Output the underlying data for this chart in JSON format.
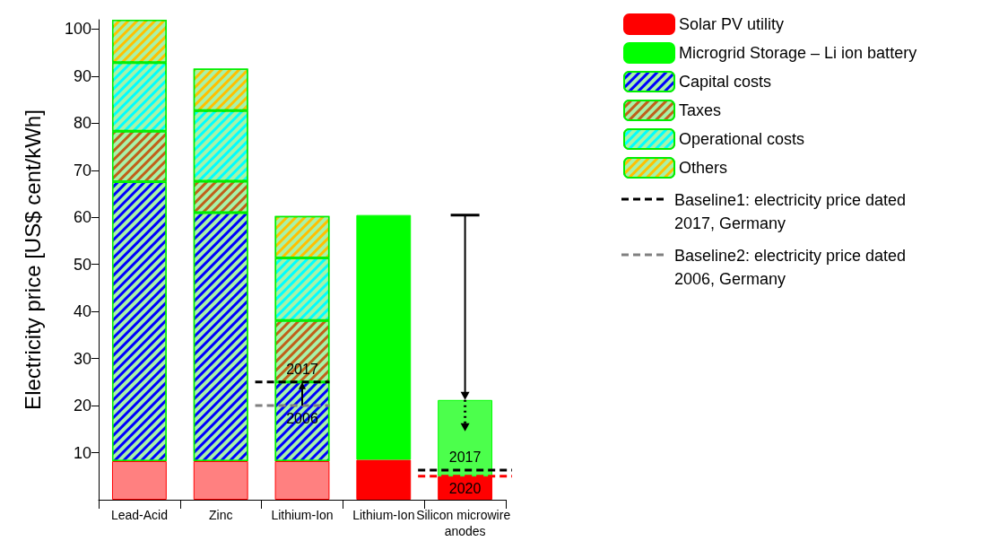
{
  "chart_data": {
    "type": "bar",
    "stacked": true,
    "ylabel": "Electricity price [US$ cent/kWh]",
    "categories": [
      "Lead-Acid",
      "Zinc",
      "Lithium-Ion",
      "Lithium-Ion",
      "Silicon microwire anodes"
    ],
    "series": [
      {
        "name": "Solar PV utility",
        "color": "#ff0000",
        "colors": [
          "#ff8080",
          "#ff8080",
          "#ff8080",
          "#ff0000",
          "#ff0000"
        ],
        "values": [
          8.2,
          8.2,
          8.2,
          8.5,
          5.0
        ]
      },
      {
        "name": "Microgrid Storage – Li ion battery",
        "color": "#00ff00",
        "colors": [
          null,
          null,
          null,
          "#00ff00",
          "#4cff4c"
        ],
        "values": [
          null,
          null,
          null,
          52.0,
          16.2
        ]
      },
      {
        "name": "Capital costs",
        "color": "#0000ff",
        "values": [
          59.4,
          52.8,
          16.8,
          null,
          null
        ]
      },
      {
        "name": "Taxes",
        "color": "#c0601a",
        "values": [
          10.7,
          6.7,
          13.1,
          null,
          null
        ]
      },
      {
        "name": "Operational costs",
        "color": "#00ffff",
        "values": [
          14.6,
          15.0,
          13.3,
          null,
          null
        ]
      },
      {
        "name": "Others",
        "color": "#ffc000",
        "values": [
          9.1,
          8.9,
          8.9,
          null,
          null
        ]
      }
    ],
    "ylim": [
      0,
      102
    ],
    "yticks": [
      10,
      20,
      30,
      40,
      50,
      60,
      70,
      80,
      90,
      100
    ],
    "ref_lines": [
      {
        "axis": "y",
        "value": 25,
        "color": "#000000",
        "line_style": "dashed"
      },
      {
        "axis": "y",
        "value": 20,
        "color": "#808080",
        "line_style": "dashed"
      },
      {
        "axis": "y",
        "value": 6.3,
        "color": "#000000",
        "line_style": "dashed"
      },
      {
        "axis": "y",
        "value": 5.0,
        "color": "#ff0000",
        "line_style": "dashed"
      }
    ],
    "annotations": [
      "Baseline1: electricity price dated 2017, Germany",
      "Baseline2: electricity price dated 2006, Germany",
      {
        "text": "2017",
        "x": "Lithium-Ion",
        "y": 25
      },
      {
        "text": "2006",
        "x": "Lithium-Ion",
        "y": 20
      },
      {
        "text": "2017",
        "x": "Silicon microwire anodes",
        "y": 6.3
      },
      {
        "text": "2020",
        "x": "Silicon microwire anodes",
        "y": 5.0
      }
    ],
    "grid": false,
    "legend": "right"
  }
}
